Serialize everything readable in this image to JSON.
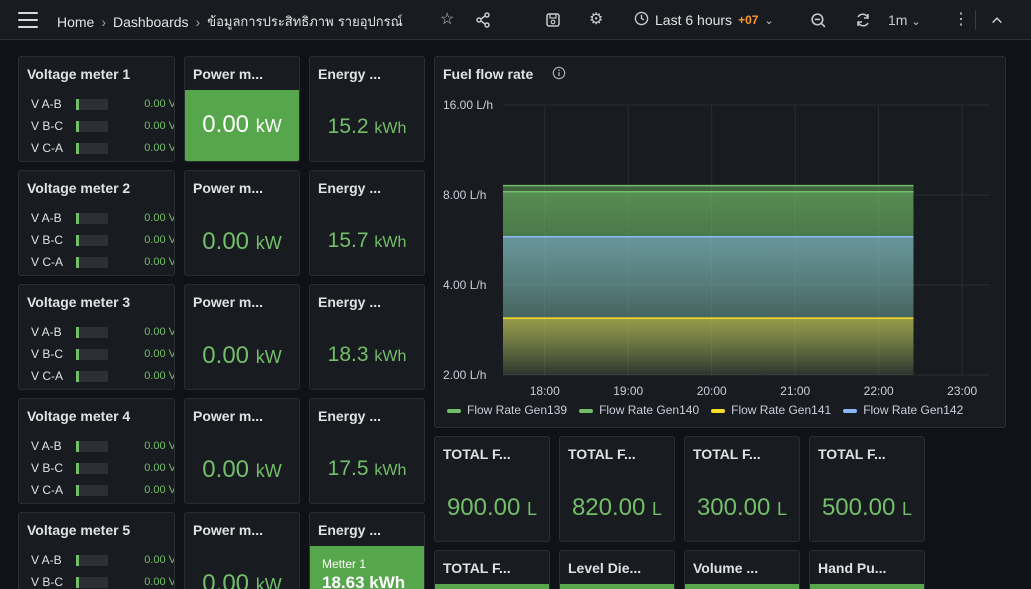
{
  "topbar": {
    "breadcrumb_home": "Home",
    "breadcrumb_dashboards": "Dashboards",
    "breadcrumb_current": "ข้อมูลการประสิทธิภาพ รายอุปกรณ์",
    "time_range": "Last 6 hours",
    "timezone": "+07",
    "refresh_interval": "1m"
  },
  "meters": [
    {
      "title": "Voltage meter 1",
      "rows": [
        {
          "label": "V A-B",
          "value": "0.00 V"
        },
        {
          "label": "V B-C",
          "value": "0.00 V"
        },
        {
          "label": "V C-A",
          "value": "0.00 V"
        }
      ],
      "power_title": "Power m...",
      "power_value": "0.00",
      "power_unit": "kW",
      "energy_title": "Energy ...",
      "energy_value": "15.2",
      "energy_unit": "kWh"
    },
    {
      "title": "Voltage meter 2",
      "rows": [
        {
          "label": "V A-B",
          "value": "0.00 V"
        },
        {
          "label": "V B-C",
          "value": "0.00 V"
        },
        {
          "label": "V C-A",
          "value": "0.00 V"
        }
      ],
      "power_title": "Power m...",
      "power_value": "0.00",
      "power_unit": "kW",
      "energy_title": "Energy ...",
      "energy_value": "15.7",
      "energy_unit": "kWh"
    },
    {
      "title": "Voltage meter 3",
      "rows": [
        {
          "label": "V A-B",
          "value": "0.00 V"
        },
        {
          "label": "V B-C",
          "value": "0.00 V"
        },
        {
          "label": "V C-A",
          "value": "0.00 V"
        }
      ],
      "power_title": "Power m...",
      "power_value": "0.00",
      "power_unit": "kW",
      "energy_title": "Energy ...",
      "energy_value": "18.3",
      "energy_unit": "kWh"
    },
    {
      "title": "Voltage meter 4",
      "rows": [
        {
          "label": "V A-B",
          "value": "0.00 V"
        },
        {
          "label": "V B-C",
          "value": "0.00 V"
        },
        {
          "label": "V C-A",
          "value": "0.00 V"
        }
      ],
      "power_title": "Power m...",
      "power_value": "0.00",
      "power_unit": "kW",
      "energy_title": "Energy ...",
      "energy_value": "17.5",
      "energy_unit": "kWh"
    },
    {
      "title": "Voltage meter 5",
      "rows": [
        {
          "label": "V A-B",
          "value": "0.00 V"
        },
        {
          "label": "V B-C",
          "value": "0.00 V"
        }
      ],
      "power_title": "Power m...",
      "power_value": "0.00",
      "power_unit": "kW",
      "energy_title": "Energy ...",
      "energy_sublabel": "Metter 1",
      "energy_value": "18.63",
      "energy_unit": "kWh"
    }
  ],
  "fuel_totals": [
    {
      "title": "TOTAL F...",
      "value": "900.00",
      "unit": "L"
    },
    {
      "title": "TOTAL F...",
      "value": "820.00",
      "unit": "L"
    },
    {
      "title": "TOTAL F...",
      "value": "300.00",
      "unit": "L"
    },
    {
      "title": "TOTAL F...",
      "value": "500.00",
      "unit": "L"
    }
  ],
  "bottom_panels": [
    {
      "title": "TOTAL F..."
    },
    {
      "title": "Level Die..."
    },
    {
      "title": "Volume ..."
    },
    {
      "title": "Hand Pu..."
    }
  ],
  "colors": {
    "accent_green": "#73bf69",
    "stat_green": "#56a64b",
    "background": "#111217",
    "panel": "#181b1f",
    "timezone_orange": "#ff9830"
  },
  "chart_data": {
    "type": "area",
    "title": "Fuel flow rate",
    "y_scale": "log",
    "y_ticks": [
      "2.00 L/h",
      "4.00 L/h",
      "8.00 L/h",
      "16.00 L/h"
    ],
    "y_tick_values": [
      2,
      4,
      8,
      16
    ],
    "x_ticks": [
      "18:00",
      "19:00",
      "20:00",
      "21:00",
      "22:00",
      "23:00"
    ],
    "ylim": [
      2,
      16
    ],
    "x": [
      "17:30",
      "22:25"
    ],
    "series": [
      {
        "name": "Flow Rate Gen139",
        "color": "#73bf69",
        "values": [
          8.6,
          8.6
        ]
      },
      {
        "name": "Flow Rate Gen140",
        "color": "#73bf69",
        "values": [
          8.2,
          8.2
        ]
      },
      {
        "name": "Flow Rate Gen141",
        "color": "#fade2a",
        "values": [
          3.1,
          3.1
        ]
      },
      {
        "name": "Flow Rate Gen142",
        "color": "#8ab8ff",
        "values": [
          5.8,
          5.8
        ]
      }
    ],
    "grid": true,
    "legend": "bottom"
  }
}
